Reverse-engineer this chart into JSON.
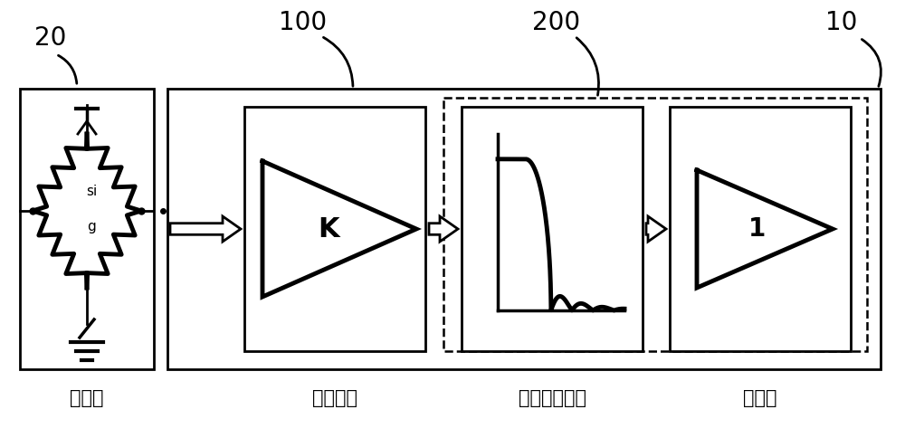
{
  "background_color": "#ffffff",
  "label_20": "20",
  "label_100": "100",
  "label_200": "200",
  "label_10": "10",
  "text_sensor": "传感器",
  "text_amplifier": "放大电路",
  "text_antialiasing": "抗混叠滤波器",
  "text_buffer": "缓冲器",
  "amp_label": "K",
  "buffer_label": "1",
  "fig_width": 10.0,
  "fig_height": 4.84,
  "dpi": 100
}
